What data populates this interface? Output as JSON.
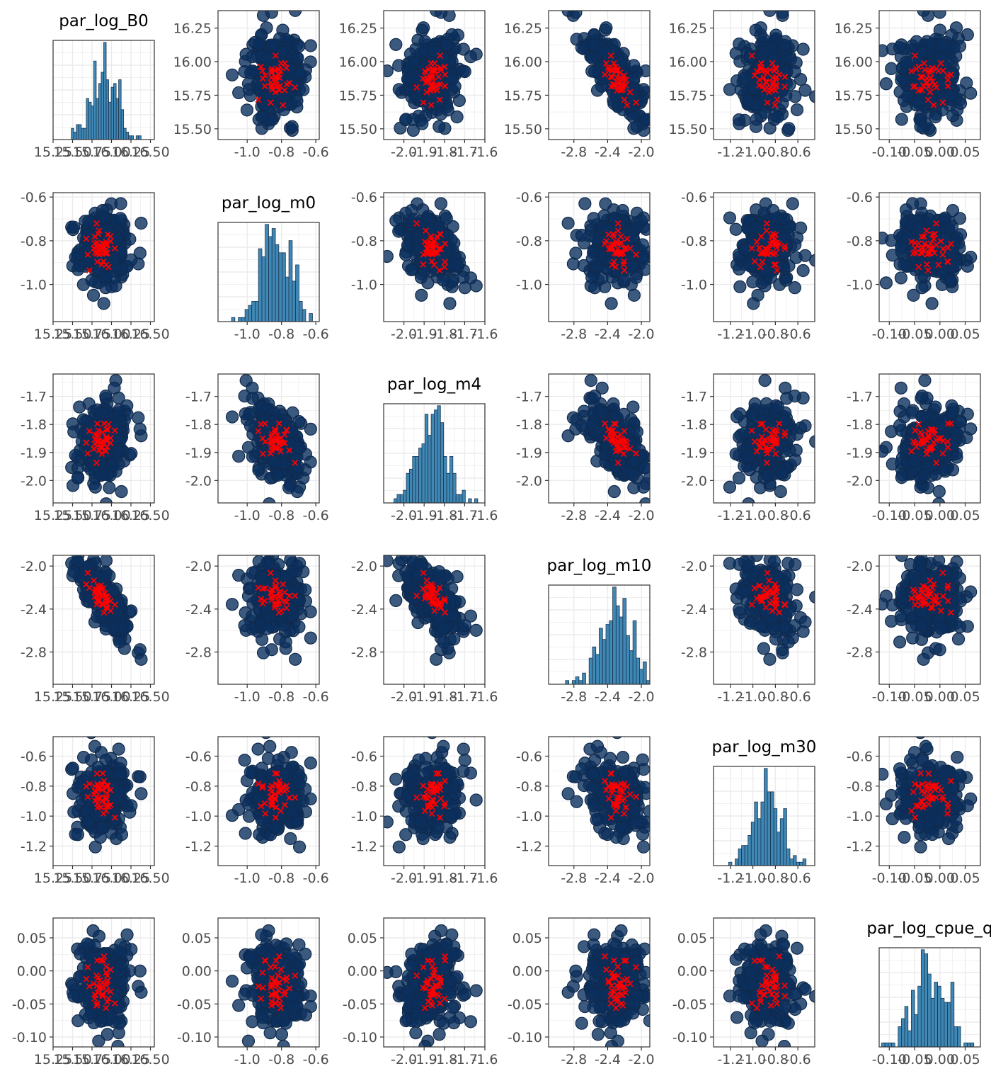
{
  "colors": {
    "point_fill": "#0b2f5e",
    "point_stroke": "#102a4c",
    "cross": "#ff0000",
    "hist_fill": "#3f88b5",
    "hist_stroke": "#1c3550",
    "grid": "#ebebeb",
    "frame": "#333333",
    "tick_text": "#4d4d4d"
  },
  "chart_data": {
    "type": "scatter",
    "layout": "pairs-matrix",
    "grid": true,
    "variables": [
      {
        "name": "par_log_B0",
        "mean": 15.9,
        "sd": 0.16,
        "lim": [
          15.42,
          16.38
        ],
        "ticks": [
          15.5,
          15.75,
          16.0,
          16.25
        ],
        "xlim": [
          15.25,
          16.55
        ],
        "xticks": [
          15.25,
          15.5,
          15.75,
          16.0,
          16.25,
          16.5
        ],
        "xtick_labels": [
          "15.25",
          "15.50",
          "15.75",
          "16.00",
          "16.25",
          "16.50"
        ],
        "tick_labels": [
          "15.50",
          "15.75",
          "16.00",
          "16.25"
        ],
        "hist_title": "par_log_B0"
      },
      {
        "name": "par_log_m0",
        "mean": -0.84,
        "sd": 0.09,
        "lim": [
          -1.17,
          -0.58
        ],
        "ticks": [
          -1.0,
          -0.8,
          -0.6
        ],
        "xlim": [
          -1.17,
          -0.58
        ],
        "xticks": [
          -1.0,
          -0.8,
          -0.6
        ],
        "xtick_labels": [
          "-1.0",
          "-0.8",
          "-0.6"
        ],
        "tick_labels": [
          "-1.0",
          "-0.8",
          "-0.6"
        ],
        "hist_title": "par_log_m0"
      },
      {
        "name": "par_log_m4",
        "mean": -1.86,
        "sd": 0.07,
        "lim": [
          -2.08,
          -1.62
        ],
        "ticks": [
          -2.0,
          -1.9,
          -1.8,
          -1.7,
          -1.6
        ],
        "xlim": [
          -2.1,
          -1.6
        ],
        "xticks": [
          -2.0,
          -1.9,
          -1.8,
          -1.7,
          -1.6
        ],
        "xtick_labels": [
          "-2.0",
          "-1.9",
          "-1.8",
          "-1.7",
          "-1.6"
        ],
        "tick_labels": [
          "-2.0",
          "-1.9",
          "-1.8",
          "-1.7",
          "-1.6"
        ],
        "hist_title": "par_log_m4"
      },
      {
        "name": "par_log_m10",
        "mean": -2.3,
        "sd": 0.18,
        "lim": [
          -3.1,
          -1.9
        ],
        "ticks": [
          -2.8,
          -2.4,
          -2.0
        ],
        "xlim": [
          -3.1,
          -1.9
        ],
        "xticks": [
          -2.8,
          -2.4,
          -2.0
        ],
        "xtick_labels": [
          "-2.8",
          "-2.4",
          "-2.0"
        ],
        "tick_labels": [
          "-2.8",
          "-2.4",
          "-2.0"
        ],
        "hist_title": "par_log_m10"
      },
      {
        "name": "par_log_m30",
        "mean": -0.86,
        "sd": 0.13,
        "lim": [
          -1.33,
          -0.47
        ],
        "ticks": [
          -1.2,
          -1.0,
          -0.8,
          -0.6
        ],
        "xlim": [
          -1.35,
          -0.45
        ],
        "xticks": [
          -1.2,
          -1.0,
          -0.8,
          -0.6
        ],
        "xtick_labels": [
          "-1.2",
          "-1.0",
          "-0.8",
          "-0.6"
        ],
        "tick_labels": [
          "-1.2",
          "-1.0",
          "-0.8",
          "-0.6"
        ],
        "hist_title": "par_log_m30"
      },
      {
        "name": "par_log_cpue_q",
        "mean": -0.02,
        "sd": 0.032,
        "lim": [
          -0.115,
          0.08
        ],
        "ticks": [
          -0.1,
          -0.05,
          0.0,
          0.05
        ],
        "xlim": [
          -0.12,
          0.08
        ],
        "xticks": [
          -0.1,
          -0.05,
          0.0,
          0.05
        ],
        "xtick_labels": [
          "-0.10",
          "-0.05",
          "0.00",
          "0.05"
        ],
        "tick_labels": [
          "-0.10",
          "-0.05",
          "0.00",
          "0.05"
        ],
        "hist_title": "par_log_cpue_q"
      }
    ],
    "correlations": [
      [
        1.0,
        0.0,
        0.2,
        -0.75,
        0.1,
        0.05
      ],
      [
        0.0,
        1.0,
        -0.5,
        0.1,
        0.0,
        0.0
      ],
      [
        0.2,
        -0.5,
        1.0,
        -0.6,
        0.1,
        0.05
      ],
      [
        -0.75,
        0.1,
        -0.6,
        1.0,
        -0.3,
        0.0
      ],
      [
        0.1,
        0.0,
        0.1,
        -0.3,
        1.0,
        -0.1
      ],
      [
        0.05,
        0.0,
        0.05,
        0.0,
        -0.1,
        1.0
      ]
    ],
    "n_points": 240,
    "n_crosses": 40,
    "hist_bins": 30
  }
}
